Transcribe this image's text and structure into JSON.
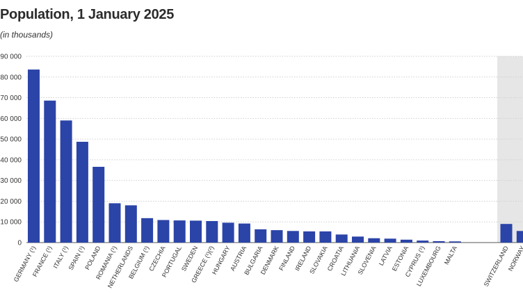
{
  "chart_data": {
    "type": "bar",
    "title": "Population, 1 January 2025",
    "subtitle": "(in thousands)",
    "xlabel": "",
    "ylabel": "",
    "ylim": [
      0,
      90000
    ],
    "yticks": [
      0,
      10000,
      20000,
      30000,
      40000,
      50000,
      60000,
      70000,
      80000,
      90000
    ],
    "ytick_labels": [
      "0",
      "10 000",
      "20 000",
      "30 000",
      "40 000",
      "50 000",
      "60 000",
      "70 000",
      "80 000",
      "90 000"
    ],
    "grid": true,
    "colors": {
      "bar": "#2b44a8",
      "grid": "#cfcfcf",
      "shade": "#e6e6e6"
    },
    "categories": [
      "GERMANY (¹)",
      "FRANCE (¹)",
      "ITALY (¹)",
      "SPAIN (¹)",
      "POLAND",
      "ROMANIA (¹)",
      "NETHERLANDS",
      "BELGIUM (¹)",
      "CZECHIA",
      "PORTUGAL",
      "SWEDEN",
      "GREECE (¹)(²)",
      "HUNGARY",
      "AUSTRIA",
      "BULGARIA",
      "DENMARK",
      "FINLAND",
      "IRELAND",
      "SLOVAKIA",
      "CROATIA",
      "LITHUANIA",
      "SLOVENIA",
      "LATVIA",
      "ESTONIA",
      "CYPRUS (¹)",
      "LUXEMBOURG",
      "MALTA",
      "SWITZERLAND",
      "NORWAY"
    ],
    "values": [
      83600,
      68600,
      59000,
      48700,
      36600,
      19000,
      18000,
      11800,
      10900,
      10700,
      10600,
      10400,
      9600,
      9200,
      6400,
      6000,
      5600,
      5400,
      5400,
      3900,
      2900,
      2100,
      1900,
      1400,
      970,
      680,
      570,
      9000,
      5600
    ],
    "shaded_from_index": 27
  }
}
